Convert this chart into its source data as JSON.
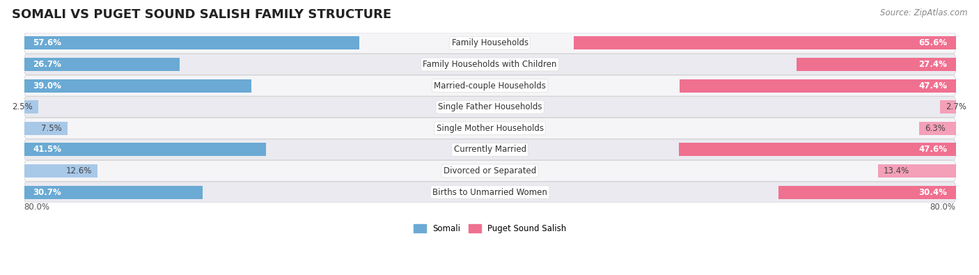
{
  "title": "SOMALI VS PUGET SOUND SALISH FAMILY STRUCTURE",
  "source": "Source: ZipAtlas.com",
  "categories": [
    "Family Households",
    "Family Households with Children",
    "Married-couple Households",
    "Single Father Households",
    "Single Mother Households",
    "Currently Married",
    "Divorced or Separated",
    "Births to Unmarried Women"
  ],
  "somali_values": [
    57.6,
    26.7,
    39.0,
    2.5,
    7.5,
    41.5,
    12.6,
    30.7
  ],
  "puget_values": [
    65.6,
    27.4,
    47.4,
    2.7,
    6.3,
    47.6,
    13.4,
    30.4
  ],
  "somali_color_dark": "#6aaad4",
  "somali_color_light": "#a8c8e8",
  "puget_color_dark": "#f07090",
  "puget_color_light": "#f4a0b8",
  "row_bg_even": "#f5f5f8",
  "row_bg_odd": "#eaeaf0",
  "max_value": 80.0,
  "title_fontsize": 13,
  "label_fontsize": 8.5,
  "value_fontsize": 8.5,
  "source_fontsize": 8.5,
  "large_threshold": 15.0
}
